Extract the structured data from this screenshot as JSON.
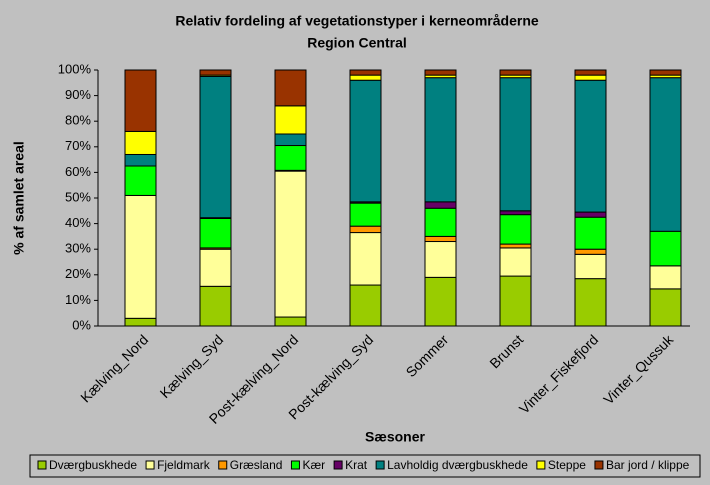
{
  "chart_data": {
    "type": "stacked_bar_100",
    "title": "Relativ fordeling af vegetationstyper i kerneområderne",
    "subtitle": "Region Central",
    "x_label": "Sæsoner",
    "y_label": "% af samlet areal",
    "categories": [
      "Kælving_Nord",
      "Kælving_Syd",
      "Post-kælving_Nord",
      "Post-kælving_Syd",
      "Sommer",
      "Brunst",
      "Vinter_Fiskefjord",
      "Vinter_Qussuk"
    ],
    "ylim": [
      0,
      100
    ],
    "yticks": [
      {
        "value": 0,
        "label": "0%"
      },
      {
        "value": 10,
        "label": "10%"
      },
      {
        "value": 20,
        "label": "20%"
      },
      {
        "value": 30,
        "label": "30%"
      },
      {
        "value": 40,
        "label": "40%"
      },
      {
        "value": 50,
        "label": "50%"
      },
      {
        "value": 60,
        "label": "60%"
      },
      {
        "value": 70,
        "label": "70%"
      },
      {
        "value": 80,
        "label": "80%"
      },
      {
        "value": 90,
        "label": "90%"
      },
      {
        "value": 100,
        "label": "100%"
      }
    ],
    "series": [
      {
        "name": "Dværgbuskhede",
        "color": "#99cc00",
        "values": [
          3,
          15.5,
          3.5,
          16,
          19,
          19.5,
          18.5,
          14.5
        ]
      },
      {
        "name": "Fjeldmark",
        "color": "#ffff99",
        "values": [
          48,
          14.5,
          57,
          20.5,
          14,
          11,
          9.5,
          9
        ]
      },
      {
        "name": "Græsland",
        "color": "#ff9900",
        "values": [
          0,
          0.5,
          0.3,
          2.5,
          2,
          1.5,
          2,
          0
        ]
      },
      {
        "name": "Kær",
        "color": "#00ff00",
        "values": [
          11.5,
          11.5,
          9.7,
          9,
          11,
          11.5,
          12.5,
          13.5
        ]
      },
      {
        "name": "Krat",
        "color": "#660066",
        "values": [
          0,
          0.3,
          0,
          0.5,
          2.5,
          1.5,
          2,
          0
        ]
      },
      {
        "name": "Lavholdig dværgbuskhede",
        "color": "#008080",
        "values": [
          4.5,
          55.2,
          4.5,
          47.5,
          48.5,
          52,
          51.5,
          60
        ]
      },
      {
        "name": "Steppe",
        "color": "#ffff00",
        "values": [
          9,
          0.5,
          11,
          2,
          1,
          1,
          2,
          1
        ]
      },
      {
        "name": "Bar jord / klippe",
        "color": "#993300",
        "values": [
          24,
          2,
          14,
          2,
          2,
          2,
          2,
          2
        ]
      }
    ]
  }
}
